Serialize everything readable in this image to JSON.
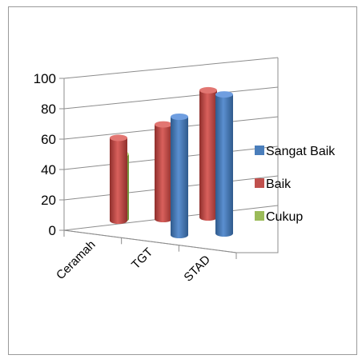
{
  "chart_data": {
    "type": "bar",
    "style": "3d-cylinder",
    "title": "",
    "xlabel": "",
    "ylabel": "",
    "categories": [
      "Ceramah",
      "TGT",
      "STAD"
    ],
    "series": [
      {
        "name": "Sangat Baik",
        "values": [
          0,
          80,
          94
        ],
        "color": "#4a7ebb"
      },
      {
        "name": "Baik",
        "values": [
          56,
          64,
          86
        ],
        "color": "#c0504d"
      },
      {
        "name": "Cukup",
        "values": [
          44,
          0,
          0
        ],
        "color": "#9bbb59"
      }
    ],
    "yticks": [
      "0",
      "20",
      "40",
      "60",
      "80",
      "100"
    ],
    "ylim": [
      0,
      100
    ],
    "grid": true,
    "legend": "right"
  }
}
